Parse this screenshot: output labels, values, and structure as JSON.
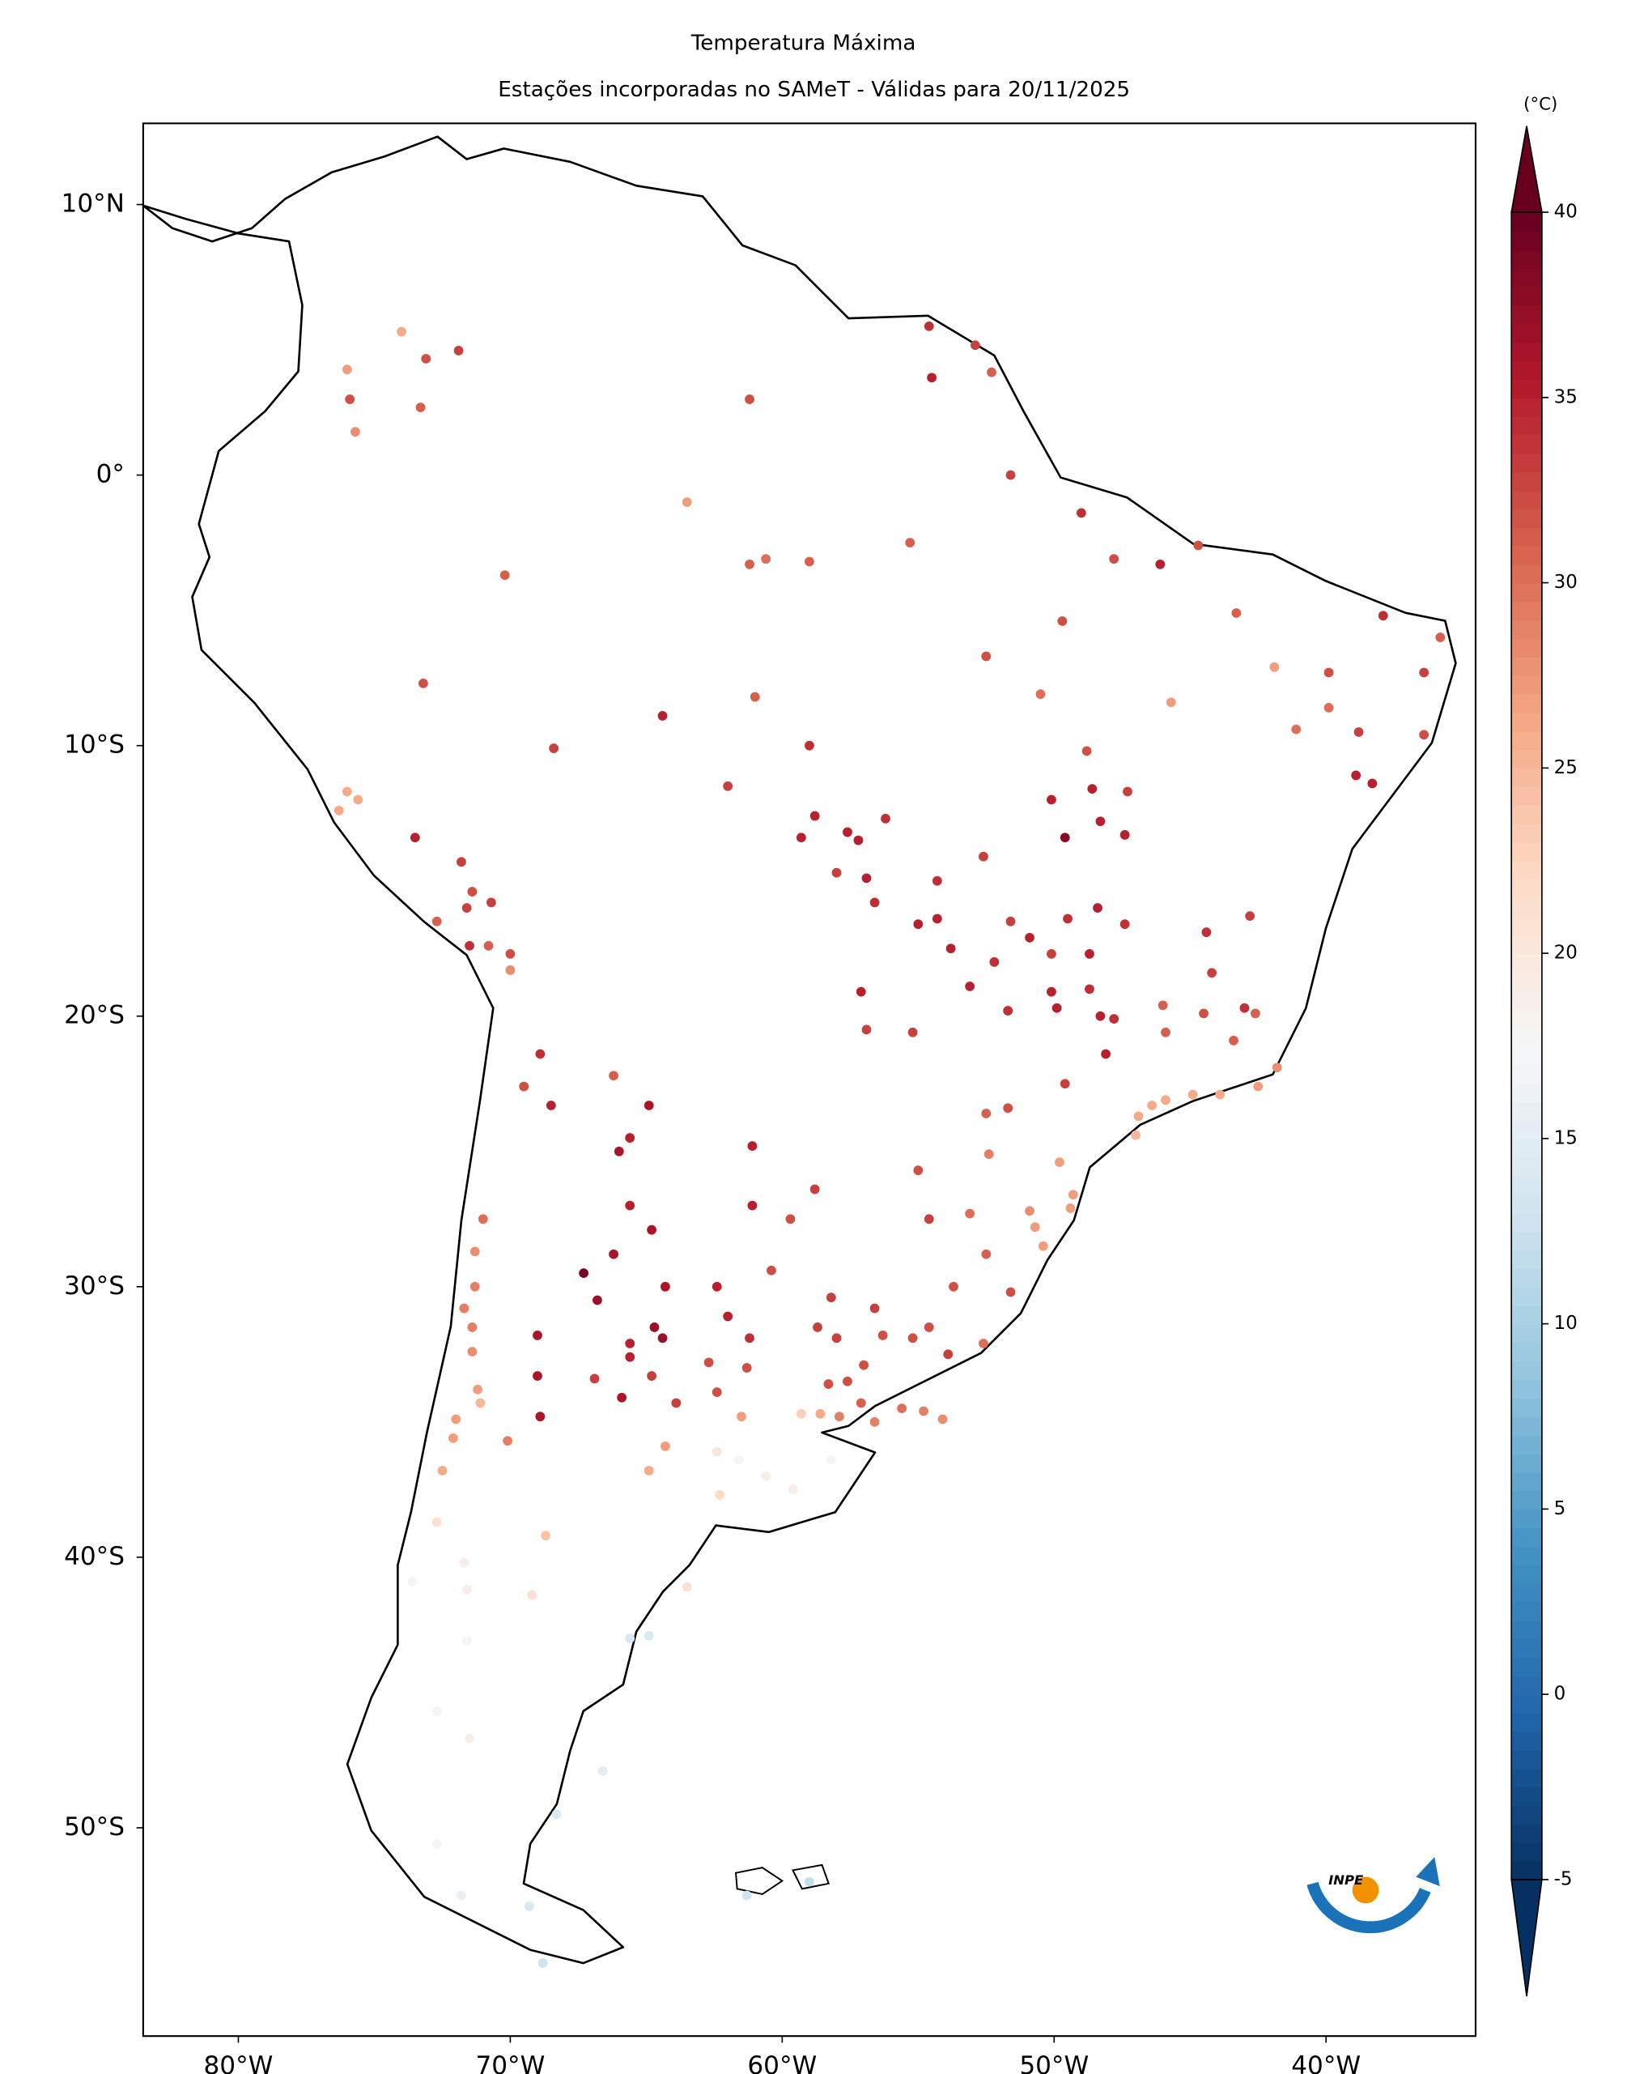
{
  "chart_data": {
    "type": "scatter",
    "title": "Temperatura Máxima",
    "subtitle": "Estações incorporadas no SAMeT - Válidas para 20/11/2025",
    "colormap": "RdBu_r",
    "clim": [
      -5,
      40
    ],
    "colorbar_label": "(°C)",
    "colorbar_ticks": [
      -5,
      0,
      5,
      10,
      15,
      20,
      25,
      30,
      35,
      40
    ],
    "xlim": [
      -83.5,
      -34.5
    ],
    "ylim": [
      -57.7,
      13.0
    ],
    "xticks": [
      {
        "value": -80,
        "label": "80°W"
      },
      {
        "value": -70,
        "label": "70°W"
      },
      {
        "value": -60,
        "label": "60°W"
      },
      {
        "value": -50,
        "label": "50°W"
      },
      {
        "value": -40,
        "label": "40°W"
      }
    ],
    "yticks": [
      {
        "value": 10,
        "label": "10°N"
      },
      {
        "value": 0,
        "label": "0°"
      },
      {
        "value": -10,
        "label": "10°S"
      },
      {
        "value": -20,
        "label": "20°S"
      },
      {
        "value": -30,
        "label": "30°S"
      },
      {
        "value": -40,
        "label": "40°S"
      },
      {
        "value": -50,
        "label": "50°S"
      }
    ],
    "x": [
      -74.0,
      -76.0,
      -75.9,
      -73.1,
      -71.9,
      -73.3,
      -75.7,
      -61.2,
      -54.6,
      -54.5,
      -52.9,
      -52.3,
      -63.5,
      -70.2,
      -60.6,
      -61.2,
      -59.0,
      -55.3,
      -51.6,
      -49.0,
      -47.8,
      -46.1,
      -44.7,
      -43.3,
      -37.9,
      -35.8,
      -39.9,
      -41.9,
      -45.7,
      -36.4,
      -39.9,
      -38.8,
      -41.1,
      -38.9,
      -38.3,
      -36.4,
      -61.0,
      -73.2,
      -52.5,
      -49.7,
      -50.5,
      -64.4,
      -68.4,
      -59.0,
      -62.0,
      -58.8,
      -59.3,
      -57.6,
      -57.2,
      -56.2,
      -58.0,
      -56.9,
      -56.6,
      -54.3,
      -52.6,
      -55.0,
      -54.3,
      -53.8,
      -52.2,
      -50.9,
      -51.6,
      -49.5,
      -48.4,
      -47.4,
      -50.1,
      -48.8,
      -48.6,
      -48.3,
      -47.3,
      -47.4,
      -49.6,
      -44.4,
      -42.8,
      -44.2,
      -43.0,
      -42.6,
      -44.5,
      -46.0,
      -45.9,
      -50.1,
      -48.7,
      -50.1,
      -49.9,
      -48.3,
      -48.7,
      -51.7,
      -53.1,
      -57.1,
      -56.9,
      -55.2,
      -48.1,
      -47.8,
      -49.6,
      -51.7,
      -52.5,
      -52.4,
      -55.0,
      -54.6,
      -53.1,
      -50.9,
      -50.7,
      -49.3,
      -49.8,
      -49.4,
      -50.4,
      -52.5,
      -51.6,
      -53.7,
      -52.6,
      -46.9,
      -46.4,
      -45.9,
      -44.9,
      -43.9,
      -42.5,
      -41.8,
      -43.4,
      -47.0,
      -58.7,
      -58.0,
      -56.6,
      -56.3,
      -55.2,
      -54.6,
      -53.9,
      -57.0,
      -58.3,
      -57.6,
      -57.1,
      -57.9,
      -56.6,
      -55.6,
      -54.8,
      -54.1,
      -58.6,
      -59.3,
      -66.2,
      -64.9,
      -65.6,
      -66.0,
      -65.6,
      -64.8,
      -66.2,
      -67.3,
      -66.8,
      -64.3,
      -62.4,
      -60.4,
      -64.7,
      -64.4,
      -65.6,
      -65.6,
      -66.9,
      -64.8,
      -63.9,
      -62.7,
      -61.3,
      -62.4,
      -62.0,
      -61.2,
      -61.1,
      -61.1,
      -59.7,
      -58.8,
      -58.2,
      -69.0,
      -69.0,
      -68.9,
      -65.9,
      -76.0,
      -76.3,
      -75.6,
      -73.5,
      -71.8,
      -71.4,
      -70.7,
      -71.6,
      -72.7,
      -71.5,
      -70.8,
      -70.0,
      -70.0,
      -68.9,
      -69.5,
      -68.5,
      -71.0,
      -71.3,
      -71.3,
      -71.7,
      -71.4,
      -71.4,
      -71.2,
      -71.1,
      -72.0,
      -72.1,
      -72.5,
      -70.1,
      -64.3,
      -64.9,
      -61.5,
      -62.4,
      -62.3,
      -60.6,
      -59.6,
      -61.6,
      -58.2,
      -68.7,
      -72.7,
      -71.7,
      -71.6,
      -69.2,
      -73.6,
      -71.6,
      -72.7,
      -71.5,
      -63.5,
      -65.6,
      -64.9,
      -66.6,
      -68.3,
      -72.7,
      -69.3,
      -68.8,
      -71.8,
      -61.3,
      -59.0
    ],
    "y": [
      5.3,
      3.9,
      2.8,
      4.3,
      4.6,
      2.5,
      1.6,
      2.8,
      5.5,
      3.6,
      4.8,
      3.8,
      -1.0,
      -3.7,
      -3.1,
      -3.3,
      -3.2,
      -2.5,
      0.0,
      -1.4,
      -3.1,
      -3.3,
      -2.6,
      -5.1,
      -5.2,
      -6.0,
      -7.3,
      -7.1,
      -8.4,
      -7.3,
      -8.6,
      -9.5,
      -9.4,
      -11.1,
      -11.4,
      -9.6,
      -8.2,
      -7.7,
      -6.7,
      -5.4,
      -8.1,
      -8.9,
      -10.1,
      -10.0,
      -11.5,
      -12.6,
      -13.4,
      -13.2,
      -13.5,
      -12.7,
      -14.7,
      -14.9,
      -15.8,
      -15.0,
      -14.1,
      -16.6,
      -16.4,
      -17.5,
      -18.0,
      -17.1,
      -16.5,
      -16.4,
      -16.0,
      -16.6,
      -12.0,
      -10.2,
      -11.6,
      -12.8,
      -11.7,
      -13.3,
      -13.4,
      -16.9,
      -16.3,
      -18.4,
      -19.7,
      -19.9,
      -19.9,
      -19.6,
      -20.6,
      -17.7,
      -17.7,
      -19.1,
      -19.7,
      -20.0,
      -19.0,
      -19.8,
      -18.9,
      -19.1,
      -20.5,
      -20.6,
      -21.4,
      -20.1,
      -22.5,
      -23.4,
      -23.6,
      -25.1,
      -25.7,
      -27.5,
      -27.3,
      -27.2,
      -27.8,
      -26.6,
      -25.4,
      -27.1,
      -28.5,
      -28.8,
      -30.2,
      -30.0,
      -32.1,
      -23.7,
      -23.3,
      -23.1,
      -22.9,
      -22.9,
      -22.6,
      -21.9,
      -20.9,
      -24.4,
      -31.5,
      -31.9,
      -30.8,
      -31.8,
      -31.9,
      -31.5,
      -32.5,
      -32.9,
      -33.6,
      -33.5,
      -34.3,
      -34.8,
      -35.0,
      -34.5,
      -34.6,
      -34.9,
      -34.7,
      -34.7,
      -22.2,
      -23.3,
      -24.5,
      -25.0,
      -27.0,
      -27.9,
      -28.8,
      -29.5,
      -30.5,
      -30.0,
      -30.0,
      -29.4,
      -31.5,
      -31.9,
      -32.1,
      -32.6,
      -33.4,
      -33.3,
      -34.3,
      -32.8,
      -33.0,
      -33.9,
      -31.1,
      -31.9,
      -24.8,
      -27.0,
      -27.5,
      -26.4,
      -30.4,
      -31.8,
      -33.3,
      -34.8,
      -34.1,
      -11.7,
      -12.4,
      -12.0,
      -13.4,
      -14.3,
      -15.4,
      -15.8,
      -16.0,
      -16.5,
      -17.4,
      -17.4,
      -17.7,
      -18.3,
      -21.4,
      -22.6,
      -23.3,
      -27.5,
      -28.7,
      -30.0,
      -30.8,
      -31.5,
      -32.4,
      -33.8,
      -34.3,
      -34.9,
      -35.6,
      -36.8,
      -35.7,
      -35.9,
      -36.8,
      -34.8,
      -36.1,
      -37.7,
      -37.0,
      -37.5,
      -36.4,
      -36.4,
      -39.2,
      -38.7,
      -40.2,
      -41.2,
      -41.4,
      -40.9,
      -43.1,
      -45.7,
      -46.7,
      -41.1,
      -43.0,
      -42.9,
      -47.9,
      -49.5,
      -50.6,
      -52.9,
      -55.0,
      -52.5,
      -52.5,
      -52.0
    ],
    "values": [
      26,
      27,
      32,
      32,
      33,
      31,
      28,
      32,
      34,
      35,
      33,
      31,
      27,
      31,
      30,
      31,
      31,
      31,
      33,
      34,
      32,
      35,
      32,
      31,
      34,
      31,
      32,
      27,
      27,
      33,
      30,
      33,
      30,
      35,
      35,
      32,
      31,
      32,
      32,
      32,
      30,
      35,
      33,
      34,
      33,
      35,
      35,
      35,
      35,
      34,
      33,
      35,
      34,
      34,
      33,
      35,
      35,
      35,
      34,
      35,
      33,
      34,
      35,
      34,
      35,
      32,
      35,
      35,
      33,
      35,
      38,
      34,
      33,
      33,
      34,
      31,
      32,
      31,
      31,
      33,
      35,
      35,
      35,
      35,
      34,
      34,
      35,
      35,
      33,
      33,
      35,
      34,
      33,
      32,
      31,
      29,
      32,
      33,
      30,
      28,
      27,
      27,
      27,
      27,
      27,
      31,
      32,
      32,
      30,
      26,
      26,
      26,
      26,
      26,
      27,
      28,
      31,
      25,
      33,
      33,
      33,
      32,
      32,
      32,
      33,
      32,
      32,
      32,
      31,
      29,
      29,
      30,
      29,
      28,
      26,
      23,
      31,
      36,
      35,
      36,
      35,
      36,
      36,
      39,
      37,
      36,
      35,
      32,
      37,
      37,
      35,
      35,
      33,
      33,
      33,
      32,
      32,
      32,
      35,
      34,
      35,
      35,
      32,
      33,
      33,
      36,
      36,
      36,
      36,
      26,
      26,
      26,
      35,
      33,
      32,
      33,
      33,
      31,
      34,
      31,
      32,
      28,
      34,
      32,
      35,
      30,
      28,
      29,
      29,
      29,
      28,
      27,
      25,
      27,
      27,
      26,
      29,
      27,
      26,
      27,
      20,
      22,
      19,
      19,
      18,
      18,
      24,
      21,
      19,
      19,
      21,
      18,
      17,
      18,
      19,
      21,
      14,
      14,
      15,
      14,
      18,
      14,
      13,
      16,
      13,
      12
    ]
  }
}
